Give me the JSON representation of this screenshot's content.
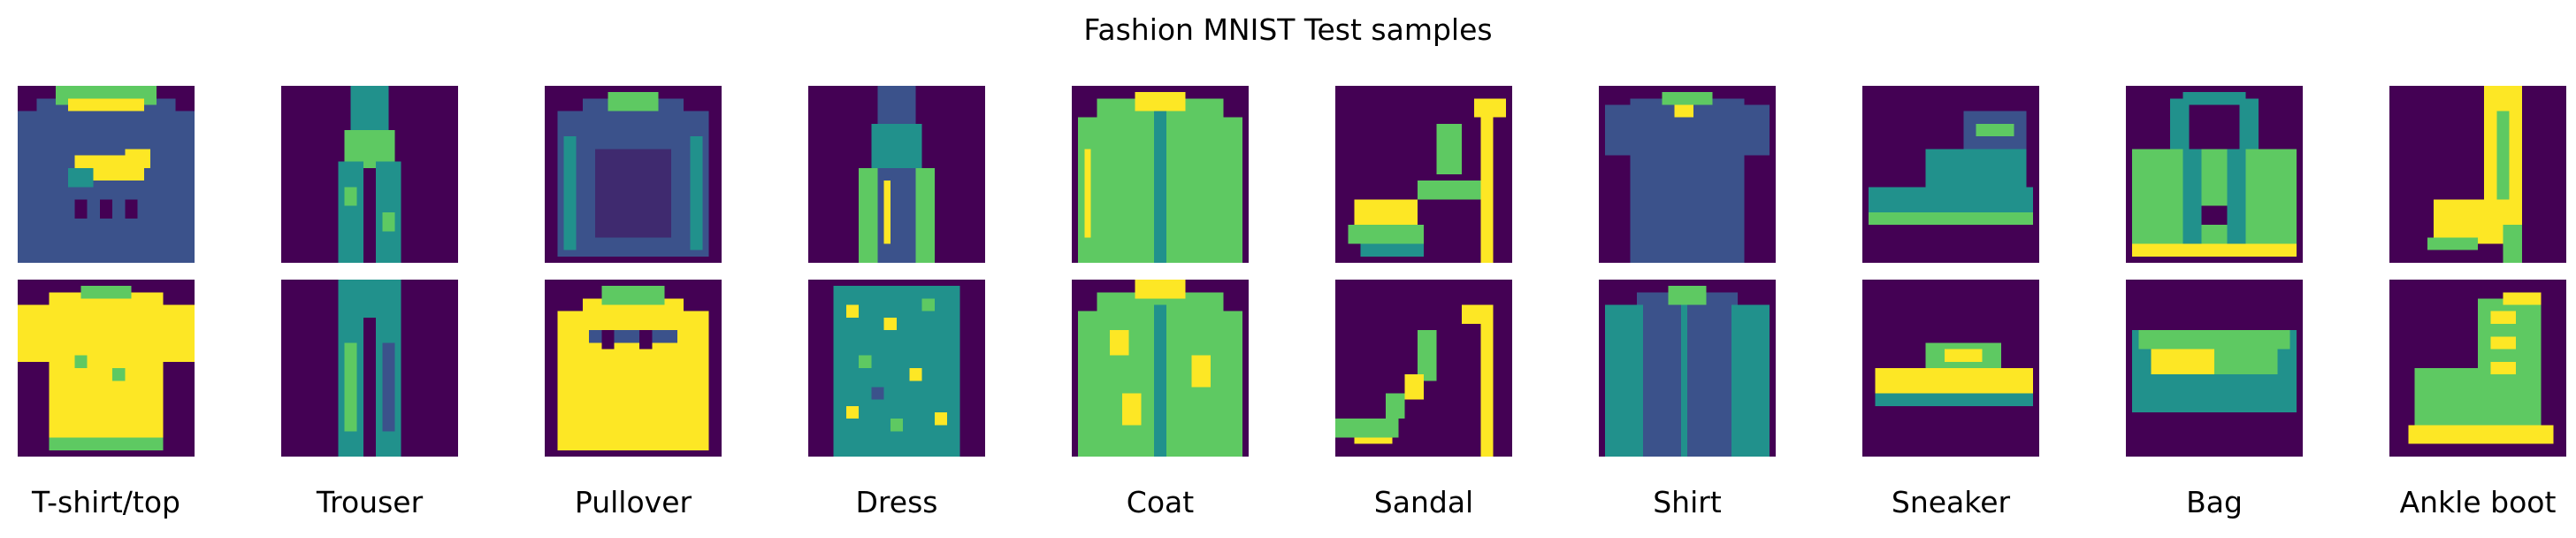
{
  "title": "Fashion MNIST Test samples",
  "colormap": {
    "name": "viridis",
    "background": "#440154",
    "stops": [
      "#440154",
      "#3b528b",
      "#21918c",
      "#5ec962",
      "#fde725"
    ]
  },
  "classes": [
    {
      "label": "T-shirt/top",
      "samples": [
        {
          "item": "sweater-with-print"
        },
        {
          "item": "t-shirt"
        }
      ]
    },
    {
      "label": "Trouser",
      "samples": [
        {
          "item": "overall-trousers"
        },
        {
          "item": "slim-trousers"
        }
      ]
    },
    {
      "label": "Pullover",
      "samples": [
        {
          "item": "dark-pullover"
        },
        {
          "item": "bright-pullover"
        }
      ]
    },
    {
      "label": "Dress",
      "samples": [
        {
          "item": "slim-dress"
        },
        {
          "item": "patterned-dress"
        }
      ]
    },
    {
      "label": "Coat",
      "samples": [
        {
          "item": "zip-coat"
        },
        {
          "item": "textured-coat"
        }
      ]
    },
    {
      "label": "Sandal",
      "samples": [
        {
          "item": "platform-heel-sandal"
        },
        {
          "item": "strappy-heel-sandal"
        }
      ]
    },
    {
      "label": "Shirt",
      "samples": [
        {
          "item": "dark-tee"
        },
        {
          "item": "long-sleeve-shirt"
        }
      ]
    },
    {
      "label": "Sneaker",
      "samples": [
        {
          "item": "high-top-sneaker"
        },
        {
          "item": "low-sneaker"
        }
      ]
    },
    {
      "label": "Bag",
      "samples": [
        {
          "item": "handbag"
        },
        {
          "item": "clutch"
        }
      ]
    },
    {
      "label": "Ankle boot",
      "samples": [
        {
          "item": "heeled-boot"
        },
        {
          "item": "lace-up-boot"
        }
      ]
    }
  ]
}
